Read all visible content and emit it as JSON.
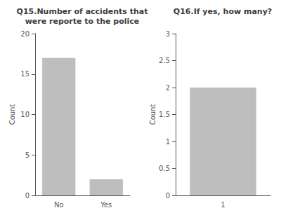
{
  "chart_data": [
    {
      "type": "bar",
      "title": "Q15.Number of accidents that\nwere reporte to the police",
      "categories": [
        "No",
        "Yes"
      ],
      "values": [
        17,
        2
      ],
      "color": "#bebebe",
      "ylabel": "Count",
      "ylim": [
        0,
        20
      ],
      "yticks": [
        0,
        5,
        10,
        15,
        20
      ],
      "grid": false
    },
    {
      "type": "bar",
      "title": "Q16.If yes, how many?",
      "categories": [
        "1"
      ],
      "values": [
        2
      ],
      "color": "#bebebe",
      "ylabel": "Count",
      "ylim": [
        0,
        3
      ],
      "yticks": [
        0,
        0.5,
        1,
        1.5,
        2,
        2.5,
        3
      ],
      "grid": false
    }
  ]
}
